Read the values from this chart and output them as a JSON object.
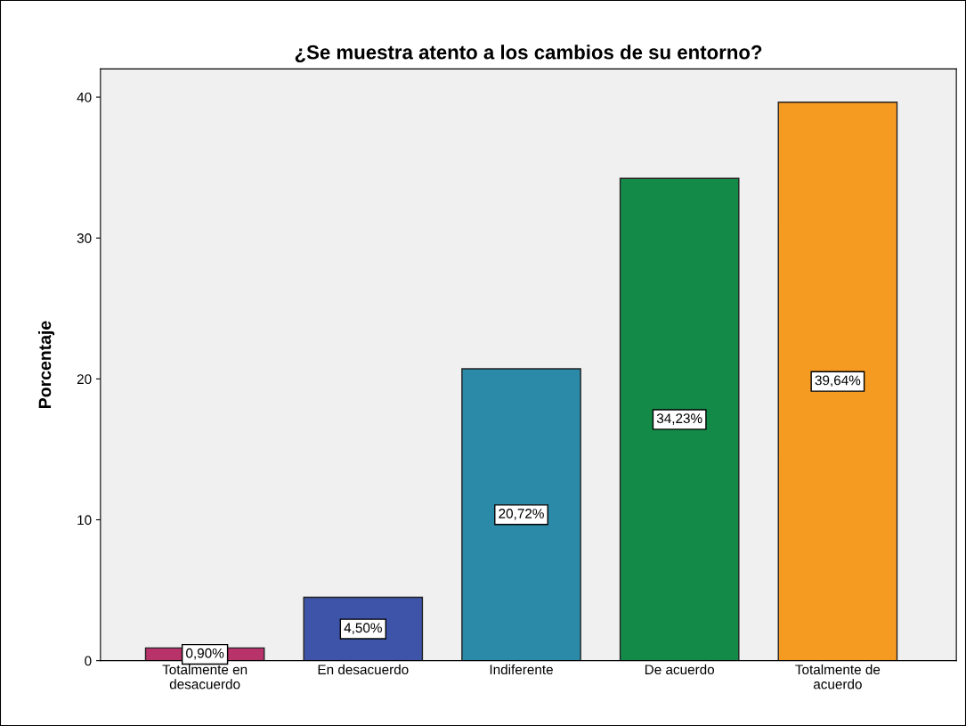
{
  "chart_data": {
    "type": "bar",
    "title": "¿Se muestra atento a los cambios de su entorno?",
    "ylabel": "Porcentaje",
    "categories": [
      "Totalmente en\ndesacuerdo",
      "En desacuerdo",
      "Indiferente",
      "De acuerdo",
      "Totalmente de\nacuerdo"
    ],
    "values": [
      0.9,
      4.5,
      20.72,
      34.23,
      39.64
    ],
    "colors": [
      "#b8336a",
      "#3d54a8",
      "#2b8aa8",
      "#138a48",
      "#f69b22"
    ],
    "value_labels": [
      "0,90%",
      "4,50%",
      "20,72%",
      "34,23%",
      "39,64%"
    ],
    "ylim": [
      0,
      42
    ],
    "yticks": [
      0,
      10,
      20,
      30,
      40
    ],
    "grid": false
  }
}
